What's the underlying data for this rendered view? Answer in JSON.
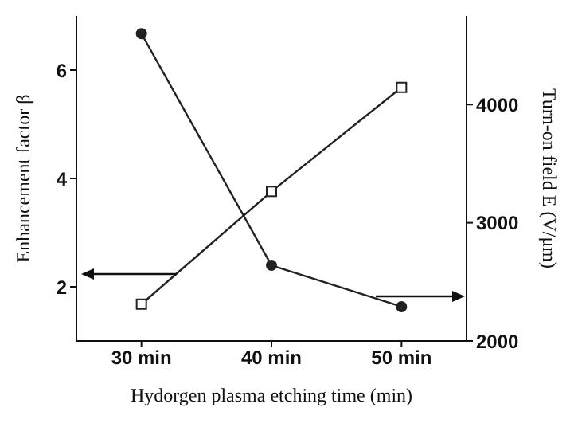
{
  "chart_data": {
    "type": "line",
    "xlabel": "Hydorgen plasma etching time (min)",
    "ylabel": "Enhancement factor  β",
    "y2label": "Turn-on field E  (V/μm)",
    "categories": [
      "30 min",
      "40 min",
      "50 min"
    ],
    "ylim": [
      1,
      7
    ],
    "yticks": [
      2,
      4,
      6
    ],
    "y2lim": [
      2000,
      4750
    ],
    "y2ticks": [
      2000,
      3000,
      4000
    ],
    "series": [
      {
        "color": "#222222",
        "values": [
          1.68,
          3.76,
          5.68
        ],
        "marker": "square"
      },
      {
        "color": "#222222",
        "values": [
          4600,
          2640,
          2290
        ],
        "marker": "circle",
        "axis": "y2"
      }
    ],
    "line_style": "solid"
  }
}
